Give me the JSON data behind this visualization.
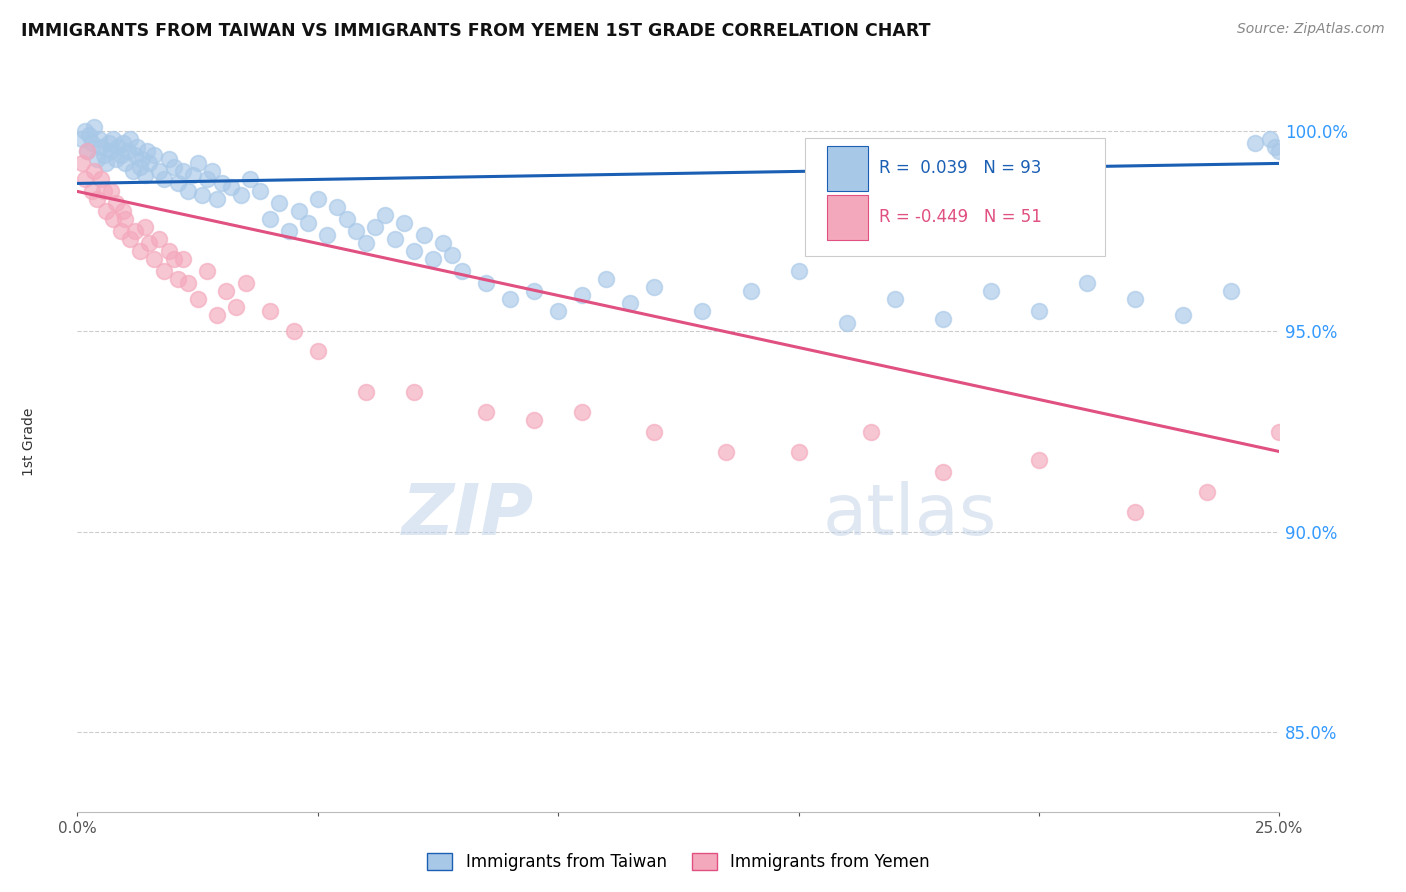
{
  "title": "IMMIGRANTS FROM TAIWAN VS IMMIGRANTS FROM YEMEN 1ST GRADE CORRELATION CHART",
  "source": "Source: ZipAtlas.com",
  "ylabel": "1st Grade",
  "x_range": [
    0.0,
    25.0
  ],
  "y_range": [
    83.0,
    101.5
  ],
  "y_ticks": [
    85.0,
    90.0,
    95.0,
    100.0
  ],
  "y_tick_labels": [
    "85.0%",
    "90.0%",
    "95.0%",
    "100.0%"
  ],
  "taiwan_R": 0.039,
  "taiwan_N": 93,
  "yemen_R": -0.449,
  "yemen_N": 51,
  "taiwan_color": "#a8c8e8",
  "yemen_color": "#f4a8bc",
  "taiwan_line_color": "#1a5fb4",
  "yemen_line_color": "#e05080",
  "background_color": "#ffffff",
  "grid_color": "#cccccc",
  "taiwan_scatter_x": [
    0.1,
    0.15,
    0.2,
    0.25,
    0.3,
    0.35,
    0.4,
    0.45,
    0.5,
    0.55,
    0.6,
    0.65,
    0.7,
    0.75,
    0.8,
    0.85,
    0.9,
    0.95,
    1.0,
    1.05,
    1.1,
    1.15,
    1.2,
    1.25,
    1.3,
    1.35,
    1.4,
    1.45,
    1.5,
    1.6,
    1.7,
    1.8,
    1.9,
    2.0,
    2.1,
    2.2,
    2.3,
    2.4,
    2.5,
    2.6,
    2.7,
    2.8,
    2.9,
    3.0,
    3.2,
    3.4,
    3.6,
    3.8,
    4.0,
    4.2,
    4.4,
    4.6,
    4.8,
    5.0,
    5.2,
    5.4,
    5.6,
    5.8,
    6.0,
    6.2,
    6.4,
    6.6,
    6.8,
    7.0,
    7.2,
    7.4,
    7.6,
    7.8,
    8.0,
    8.5,
    9.0,
    9.5,
    10.0,
    10.5,
    11.0,
    11.5,
    12.0,
    13.0,
    14.0,
    15.0,
    16.0,
    17.0,
    18.0,
    19.0,
    20.0,
    21.0,
    22.0,
    23.0,
    24.0,
    24.5,
    24.8,
    24.9,
    25.0
  ],
  "taiwan_scatter_y": [
    99.8,
    100.0,
    99.5,
    99.9,
    99.7,
    100.1,
    99.3,
    99.8,
    99.6,
    99.4,
    99.2,
    99.7,
    99.5,
    99.8,
    99.3,
    99.6,
    99.4,
    99.7,
    99.2,
    99.5,
    99.8,
    99.0,
    99.4,
    99.6,
    99.1,
    99.3,
    98.9,
    99.5,
    99.2,
    99.4,
    99.0,
    98.8,
    99.3,
    99.1,
    98.7,
    99.0,
    98.5,
    98.9,
    99.2,
    98.4,
    98.8,
    99.0,
    98.3,
    98.7,
    98.6,
    98.4,
    98.8,
    98.5,
    97.8,
    98.2,
    97.5,
    98.0,
    97.7,
    98.3,
    97.4,
    98.1,
    97.8,
    97.5,
    97.2,
    97.6,
    97.9,
    97.3,
    97.7,
    97.0,
    97.4,
    96.8,
    97.2,
    96.9,
    96.5,
    96.2,
    95.8,
    96.0,
    95.5,
    95.9,
    96.3,
    95.7,
    96.1,
    95.5,
    96.0,
    96.5,
    95.2,
    95.8,
    95.3,
    96.0,
    95.5,
    96.2,
    95.8,
    95.4,
    96.0,
    99.7,
    99.8,
    99.6,
    99.5
  ],
  "yemen_scatter_x": [
    0.1,
    0.15,
    0.2,
    0.3,
    0.35,
    0.4,
    0.5,
    0.55,
    0.6,
    0.7,
    0.75,
    0.8,
    0.9,
    0.95,
    1.0,
    1.1,
    1.2,
    1.3,
    1.4,
    1.5,
    1.6,
    1.7,
    1.8,
    1.9,
    2.0,
    2.1,
    2.2,
    2.3,
    2.5,
    2.7,
    2.9,
    3.1,
    3.3,
    3.5,
    4.0,
    4.5,
    5.0,
    6.0,
    7.0,
    8.5,
    9.5,
    10.5,
    12.0,
    13.5,
    15.0,
    16.5,
    18.0,
    20.0,
    22.0,
    23.5,
    25.0
  ],
  "yemen_scatter_y": [
    99.2,
    98.8,
    99.5,
    98.5,
    99.0,
    98.3,
    98.8,
    98.5,
    98.0,
    98.5,
    97.8,
    98.2,
    97.5,
    98.0,
    97.8,
    97.3,
    97.5,
    97.0,
    97.6,
    97.2,
    96.8,
    97.3,
    96.5,
    97.0,
    96.8,
    96.3,
    96.8,
    96.2,
    95.8,
    96.5,
    95.4,
    96.0,
    95.6,
    96.2,
    95.5,
    95.0,
    94.5,
    93.5,
    93.5,
    93.0,
    92.8,
    93.0,
    92.5,
    92.0,
    92.0,
    92.5,
    91.5,
    91.8,
    90.5,
    91.0,
    92.5
  ]
}
